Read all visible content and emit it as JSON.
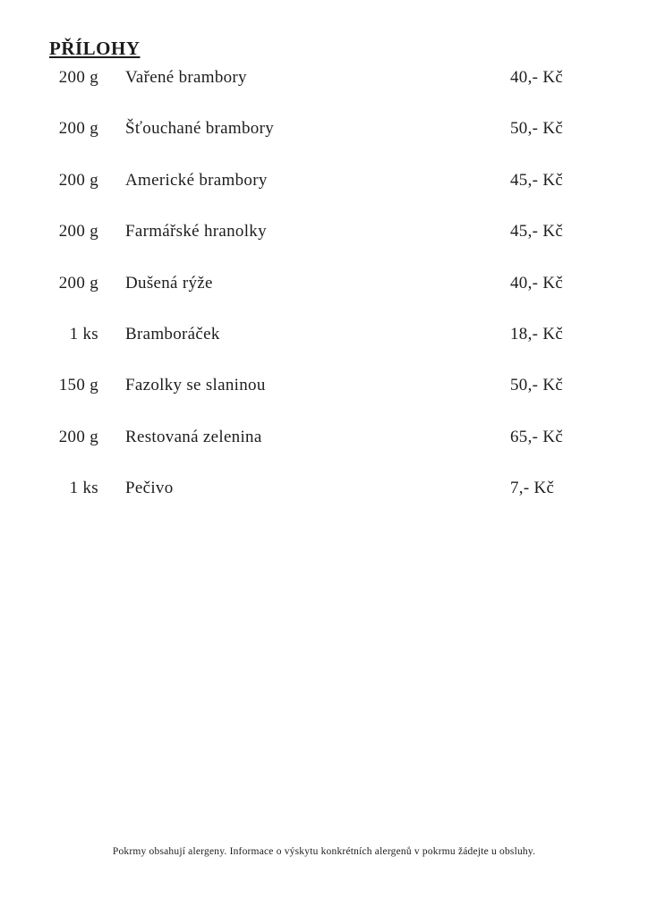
{
  "page": {
    "title": "PŘÍLOHY",
    "text_color": "#1d1d1d",
    "background_color": "#ffffff",
    "items": [
      {
        "qty": "200 g",
        "name": "Vařené brambory",
        "price": "40,- Kč"
      },
      {
        "qty": "200 g",
        "name": "Šťouchané brambory",
        "price": "50,- Kč"
      },
      {
        "qty": "200 g",
        "name": "Americké brambory",
        "price": "45,- Kč"
      },
      {
        "qty": "200 g",
        "name": "Farmářské hranolky",
        "price": "45,- Kč"
      },
      {
        "qty": "200 g",
        "name": "Dušená rýže",
        "price": "40,- Kč"
      },
      {
        "qty": "1 ks",
        "name": "Bramboráček",
        "price": "18,- Kč"
      },
      {
        "qty": "150 g",
        "name": "Fazolky se slaninou",
        "price": "50,- Kč"
      },
      {
        "qty": "200 g",
        "name": "Restovaná zelenina",
        "price": "65,- Kč"
      },
      {
        "qty": "1 ks",
        "name": "Pečivo",
        "price": "7,- Kč"
      }
    ],
    "footer": "Pokrmy obsahují alergeny. Informace o výskytu konkrétních alergenů v pokrmu žádejte u obsluhy."
  }
}
